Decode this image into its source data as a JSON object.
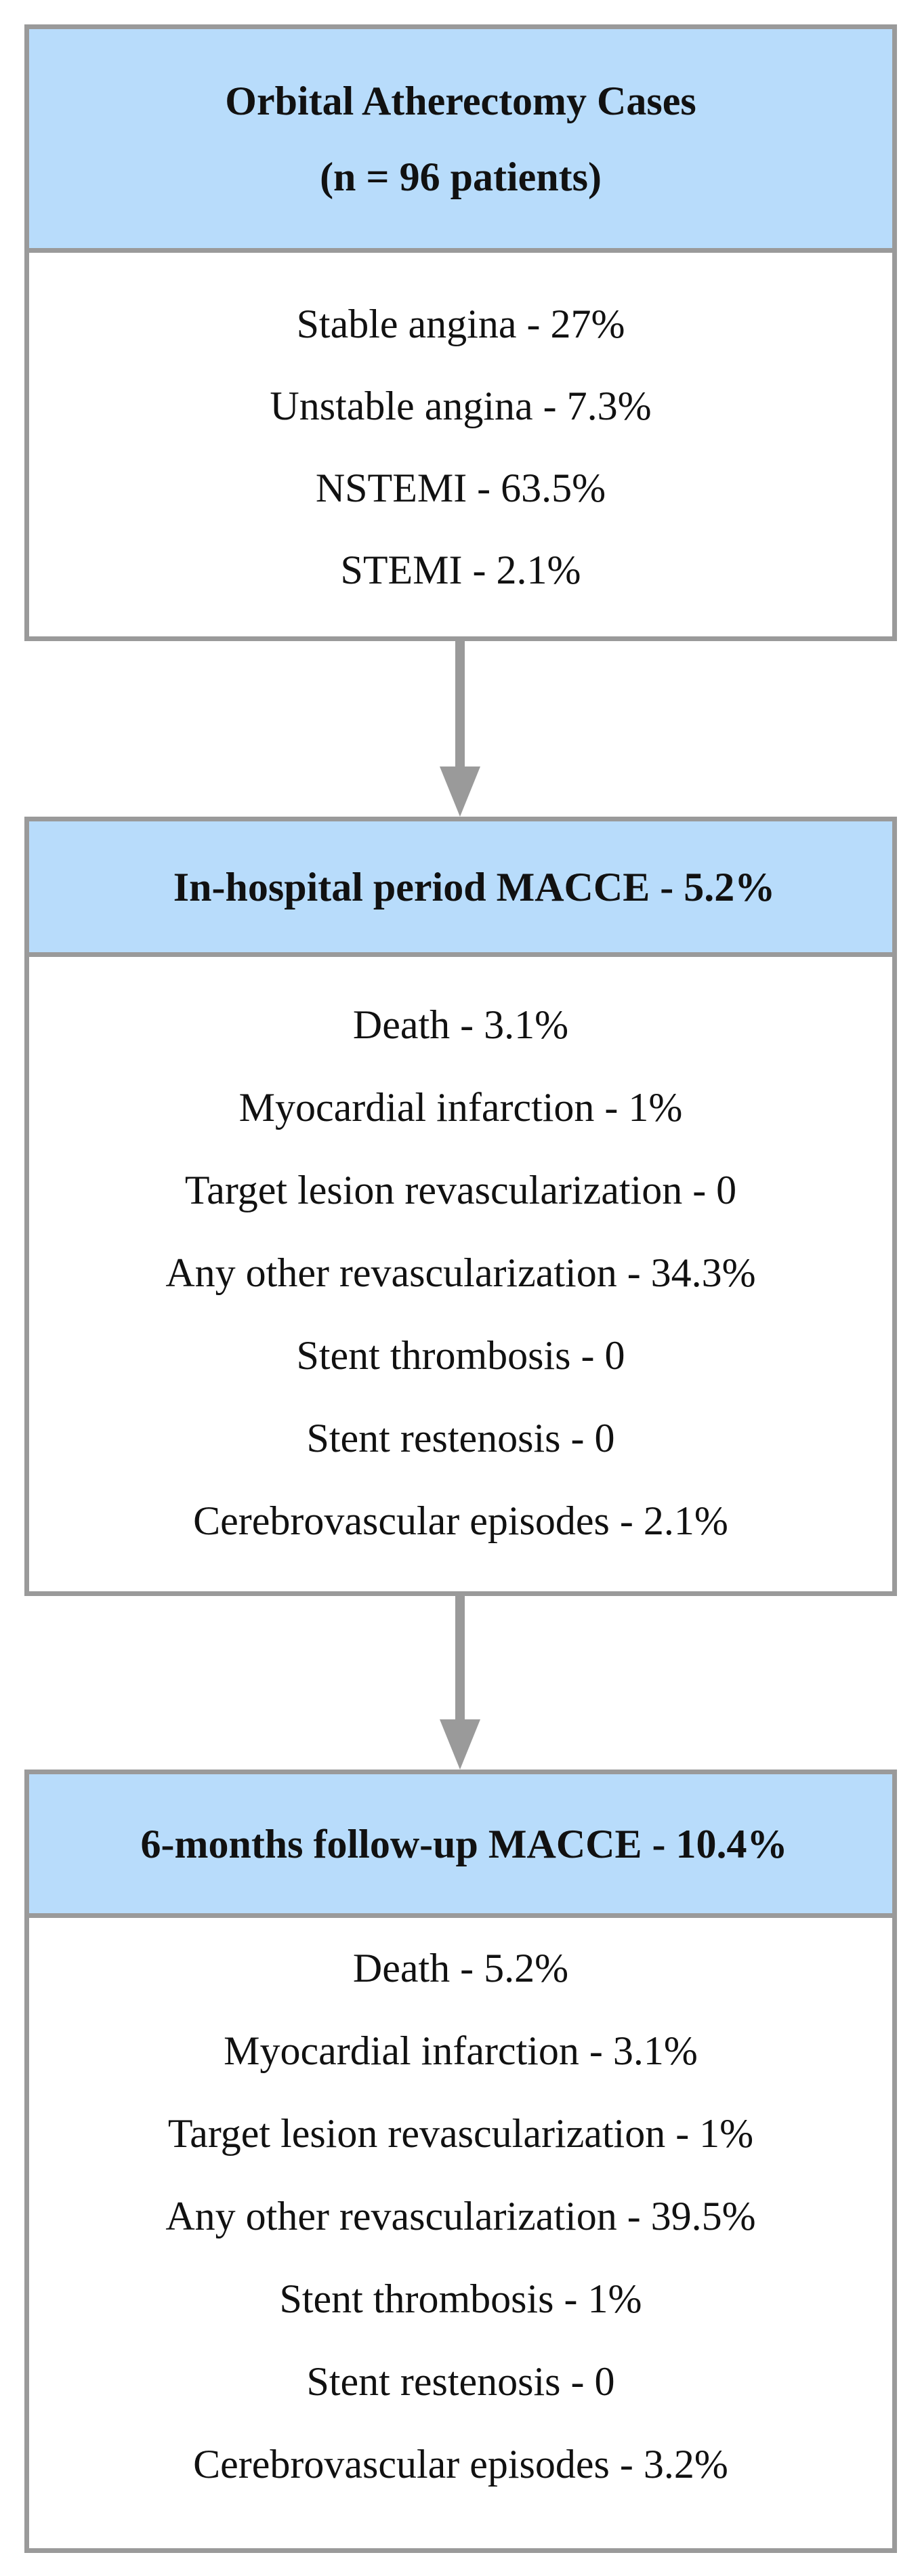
{
  "boxes": [
    {
      "header": [
        "Orbital Atherectomy Cases",
        "(n = 96 patients)"
      ],
      "items": [
        "Stable angina - 27%",
        "Unstable angina - 7.3%",
        "NSTEMI - 63.5%",
        "STEMI - 2.1%"
      ]
    },
    {
      "header": [
        "In-hospital period MACCE - 5.2%"
      ],
      "items": [
        "Death - 3.1%",
        "Myocardial infarction - 1%",
        "Target lesion revascularization - 0",
        "Any other revascularization - 34.3%",
        "Stent thrombosis - 0",
        "Stent restenosis - 0",
        "Cerebrovascular episodes - 2.1%"
      ]
    },
    {
      "header": [
        "6-months follow-up MACCE - 10.4%"
      ],
      "items": [
        "Death - 5.2%",
        "Myocardial infarction - 3.1%",
        "Target lesion revascularization - 1%",
        "Any other revascularization - 39.5%",
        "Stent thrombosis - 1%",
        "Stent restenosis - 0",
        "Cerebrovascular episodes - 3.2%"
      ]
    }
  ],
  "colors": {
    "header_fill": "#b8dcfb",
    "border": "#9a9a9a",
    "arrow": "#9a9a9a"
  }
}
